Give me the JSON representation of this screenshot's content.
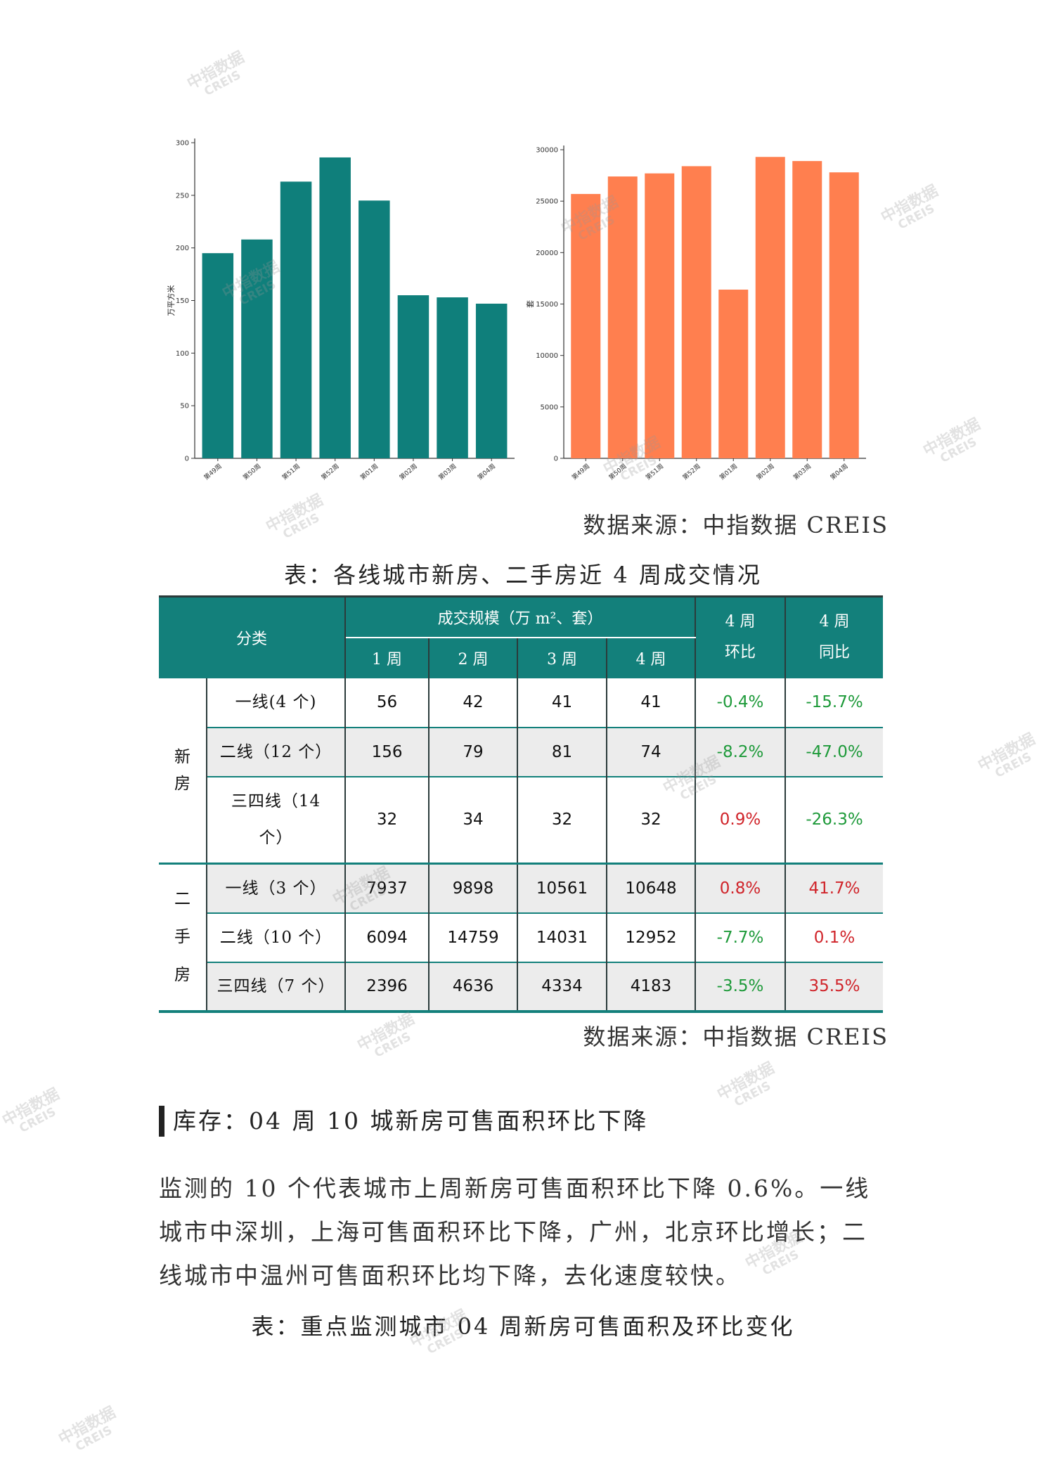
{
  "chart_data": [
    {
      "type": "bar",
      "categories": [
        "第49周",
        "第50周",
        "第51周",
        "第52周",
        "第01周",
        "第02周",
        "第03周",
        "第04周"
      ],
      "values": [
        195,
        208,
        263,
        286,
        245,
        155,
        153,
        147
      ],
      "ylabel": "万平方米",
      "ylim": [
        0,
        300
      ],
      "yticks": [
        0,
        50,
        100,
        150,
        200,
        250,
        300
      ],
      "color": "#0f7f7b"
    },
    {
      "type": "bar",
      "categories": [
        "第49周",
        "第50周",
        "第51周",
        "第52周",
        "第01周",
        "第02周",
        "第03周",
        "第04周"
      ],
      "values": [
        25700,
        27400,
        27700,
        28400,
        16400,
        29300,
        28900,
        27800
      ],
      "ylabel": "套",
      "ylim": [
        0,
        30000
      ],
      "yticks": [
        0,
        5000,
        10000,
        15000,
        20000,
        25000,
        30000
      ],
      "color": "#ff7f4f"
    }
  ],
  "source1": "数据来源：中指数据 CREIS",
  "table_caption": "表：各线城市新房、二手房近 4 周成交情况",
  "table": {
    "header": {
      "category": "分类",
      "scale": "成交规模（万 m²、套）",
      "weeks": [
        "1 周",
        "2 周",
        "3 周",
        "4 周"
      ],
      "mom_line1": "4 周",
      "mom_line2": "环比",
      "yoy_line1": "4 周",
      "yoy_line2": "同比"
    },
    "groups": [
      {
        "name_chars": [
          "新",
          "房"
        ],
        "rows": [
          {
            "label": "一线(4 个)",
            "values": [
              "56",
              "42",
              "41",
              "41"
            ],
            "mom": "-0.4%",
            "yoy": "-15.7%"
          },
          {
            "label": "二线（12 个）",
            "values": [
              "156",
              "79",
              "81",
              "74"
            ],
            "mom": "-8.2%",
            "yoy": "-47.0%"
          },
          {
            "label": "三四线（14 个）",
            "values": [
              "32",
              "34",
              "32",
              "32"
            ],
            "mom": "0.9%",
            "yoy": "-26.3%"
          }
        ]
      },
      {
        "name_chars": [
          "二",
          "手",
          "房"
        ],
        "rows": [
          {
            "label": "一线（3 个）",
            "values": [
              "7937",
              "9898",
              "10561",
              "10648"
            ],
            "mom": "0.8%",
            "yoy": "41.7%"
          },
          {
            "label": "二线（10 个）",
            "values": [
              "6094",
              "14759",
              "14031",
              "12952"
            ],
            "mom": "-7.7%",
            "yoy": "0.1%"
          },
          {
            "label": "三四线（7 个）",
            "values": [
              "2396",
              "4636",
              "4334",
              "4183"
            ],
            "mom": "-3.5%",
            "yoy": "35.5%"
          }
        ]
      }
    ]
  },
  "source2": "数据来源：中指数据 CREIS",
  "section_title": "库存：04 周 10 城新房可售面积环比下降",
  "paragraph": "监测的 10 个代表城市上周新房可售面积环比下降 0.6%。一线城市中深圳，上海可售面积环比下降，广州，北京环比增长；二线城市中温州可售面积环比均下降，去化速度较快。",
  "caption2": "表：重点监测城市 04 周新房可售面积及环比变化",
  "watermark": {
    "line1": "中指数据",
    "line2": "CREIS"
  },
  "colors": {
    "teal": "#13807b",
    "orange": "#ff7f4f",
    "green": "#1e9a3a",
    "red": "#d0242a"
  }
}
